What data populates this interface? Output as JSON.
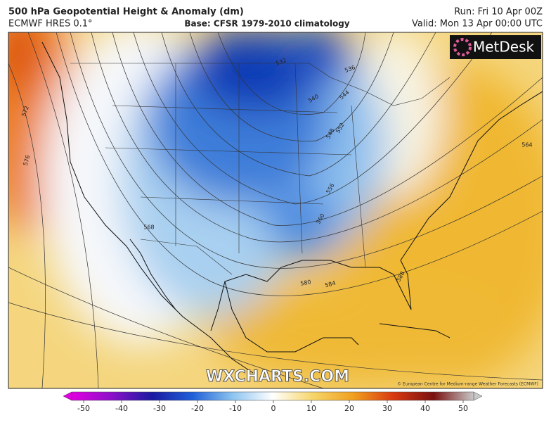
{
  "header": {
    "title": "500 hPa Geopotential Height & Anomaly (dm)",
    "model": "ECMWF HRES 0.1°",
    "base": "Base: CFSR 1979-2010 climatology",
    "run": "Run: Fri 10 Apr 00Z",
    "valid": "Valid: Mon 13 Apr 00:00 UTC"
  },
  "map": {
    "logo": "MetDesk",
    "watermark": "WXCHARTS.COM",
    "copyright": "© European Centre for Medium-range Weather Forecasts (ECMWF)",
    "contour_labels": [
      572,
      576,
      568,
      580,
      584,
      588,
      564,
      560,
      556,
      552,
      548,
      544,
      540,
      536,
      532
    ]
  },
  "colorbar": {
    "ticks": [
      -50,
      -40,
      -30,
      -20,
      -10,
      0,
      10,
      20,
      30,
      40,
      50
    ]
  }
}
